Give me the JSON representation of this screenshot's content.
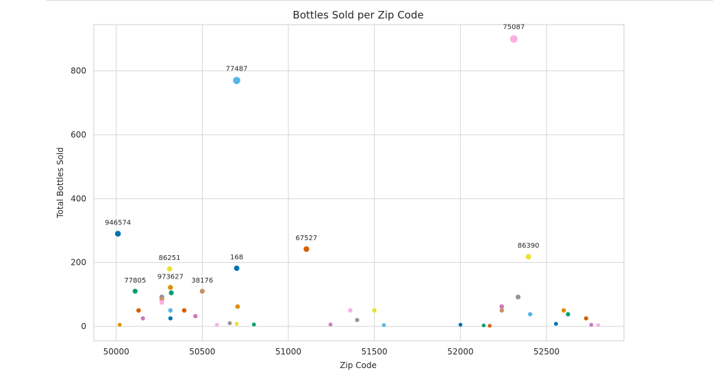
{
  "chart_data": {
    "type": "scatter",
    "title": "Bottles Sold per Zip Code",
    "xlabel": "Zip Code",
    "ylabel": "Total Bottles Sold",
    "xlim": [
      49870,
      52950
    ],
    "ylim": [
      -45,
      945
    ],
    "xticks": [
      50000,
      50500,
      51000,
      51500,
      52000,
      52500
    ],
    "yticks": [
      0,
      200,
      400,
      600,
      800
    ],
    "grid": true,
    "legend": "none",
    "points": [
      {
        "x": 50010,
        "y": 290,
        "color": "#0173b2",
        "label": "946574"
      },
      {
        "x": 50020,
        "y": 5,
        "color": "#de8f05",
        "label": ""
      },
      {
        "x": 50110,
        "y": 110,
        "color": "#029e73",
        "label": "77805"
      },
      {
        "x": 50130,
        "y": 50,
        "color": "#d55e00",
        "label": ""
      },
      {
        "x": 50155,
        "y": 25,
        "color": "#cc78bc",
        "label": ""
      },
      {
        "x": 50265,
        "y": 92,
        "color": "#949494",
        "label": ""
      },
      {
        "x": 50265,
        "y": 85,
        "color": "#ca9161",
        "label": ""
      },
      {
        "x": 50265,
        "y": 75,
        "color": "#fbafe4",
        "label": ""
      },
      {
        "x": 50310,
        "y": 180,
        "color": "#ece133",
        "label": "86251"
      },
      {
        "x": 50315,
        "y": 122,
        "color": "#de8f05",
        "label": "973627"
      },
      {
        "x": 50320,
        "y": 105,
        "color": "#029e73",
        "label": ""
      },
      {
        "x": 50315,
        "y": 50,
        "color": "#56b4e9",
        "label": ""
      },
      {
        "x": 50315,
        "y": 25,
        "color": "#0173b2",
        "label": ""
      },
      {
        "x": 50395,
        "y": 50,
        "color": "#d55e00",
        "label": ""
      },
      {
        "x": 50460,
        "y": 32,
        "color": "#cc78bc",
        "label": ""
      },
      {
        "x": 50500,
        "y": 110,
        "color": "#ca9161",
        "label": "38176"
      },
      {
        "x": 50585,
        "y": 5,
        "color": "#fbafe4",
        "label": ""
      },
      {
        "x": 50660,
        "y": 10,
        "color": "#949494",
        "label": ""
      },
      {
        "x": 50700,
        "y": 770,
        "color": "#56b4e9",
        "label": "77487"
      },
      {
        "x": 50700,
        "y": 182,
        "color": "#0173b2",
        "label": "168"
      },
      {
        "x": 50705,
        "y": 62,
        "color": "#de8f05",
        "label": ""
      },
      {
        "x": 50700,
        "y": 8,
        "color": "#ece133",
        "label": ""
      },
      {
        "x": 50800,
        "y": 6,
        "color": "#029e73",
        "label": ""
      },
      {
        "x": 51105,
        "y": 242,
        "color": "#d55e00",
        "label": "67527"
      },
      {
        "x": 51245,
        "y": 6,
        "color": "#cc78bc",
        "label": ""
      },
      {
        "x": 51360,
        "y": 50,
        "color": "#fbafe4",
        "label": ""
      },
      {
        "x": 51400,
        "y": 20,
        "color": "#949494",
        "label": ""
      },
      {
        "x": 51500,
        "y": 50,
        "color": "#ece133",
        "label": ""
      },
      {
        "x": 51555,
        "y": 4,
        "color": "#56b4e9",
        "label": ""
      },
      {
        "x": 52000,
        "y": 5,
        "color": "#0173b2",
        "label": ""
      },
      {
        "x": 52135,
        "y": 3,
        "color": "#029e73",
        "label": ""
      },
      {
        "x": 52170,
        "y": 2,
        "color": "#d55e00",
        "label": ""
      },
      {
        "x": 52240,
        "y": 62,
        "color": "#cc78bc",
        "label": ""
      },
      {
        "x": 52240,
        "y": 50,
        "color": "#ca9161",
        "label": ""
      },
      {
        "x": 52310,
        "y": 900,
        "color": "#fbafe4",
        "label": "75087"
      },
      {
        "x": 52335,
        "y": 92,
        "color": "#949494",
        "label": ""
      },
      {
        "x": 52395,
        "y": 218,
        "color": "#ece133",
        "label": "86390"
      },
      {
        "x": 52405,
        "y": 38,
        "color": "#56b4e9",
        "label": ""
      },
      {
        "x": 52555,
        "y": 8,
        "color": "#0173b2",
        "label": ""
      },
      {
        "x": 52600,
        "y": 50,
        "color": "#de8f05",
        "label": ""
      },
      {
        "x": 52625,
        "y": 38,
        "color": "#029e73",
        "label": ""
      },
      {
        "x": 52730,
        "y": 25,
        "color": "#d55e00",
        "label": ""
      },
      {
        "x": 52760,
        "y": 5,
        "color": "#cc78bc",
        "label": ""
      },
      {
        "x": 52800,
        "y": 4,
        "color": "#fbafe4",
        "label": ""
      }
    ]
  }
}
